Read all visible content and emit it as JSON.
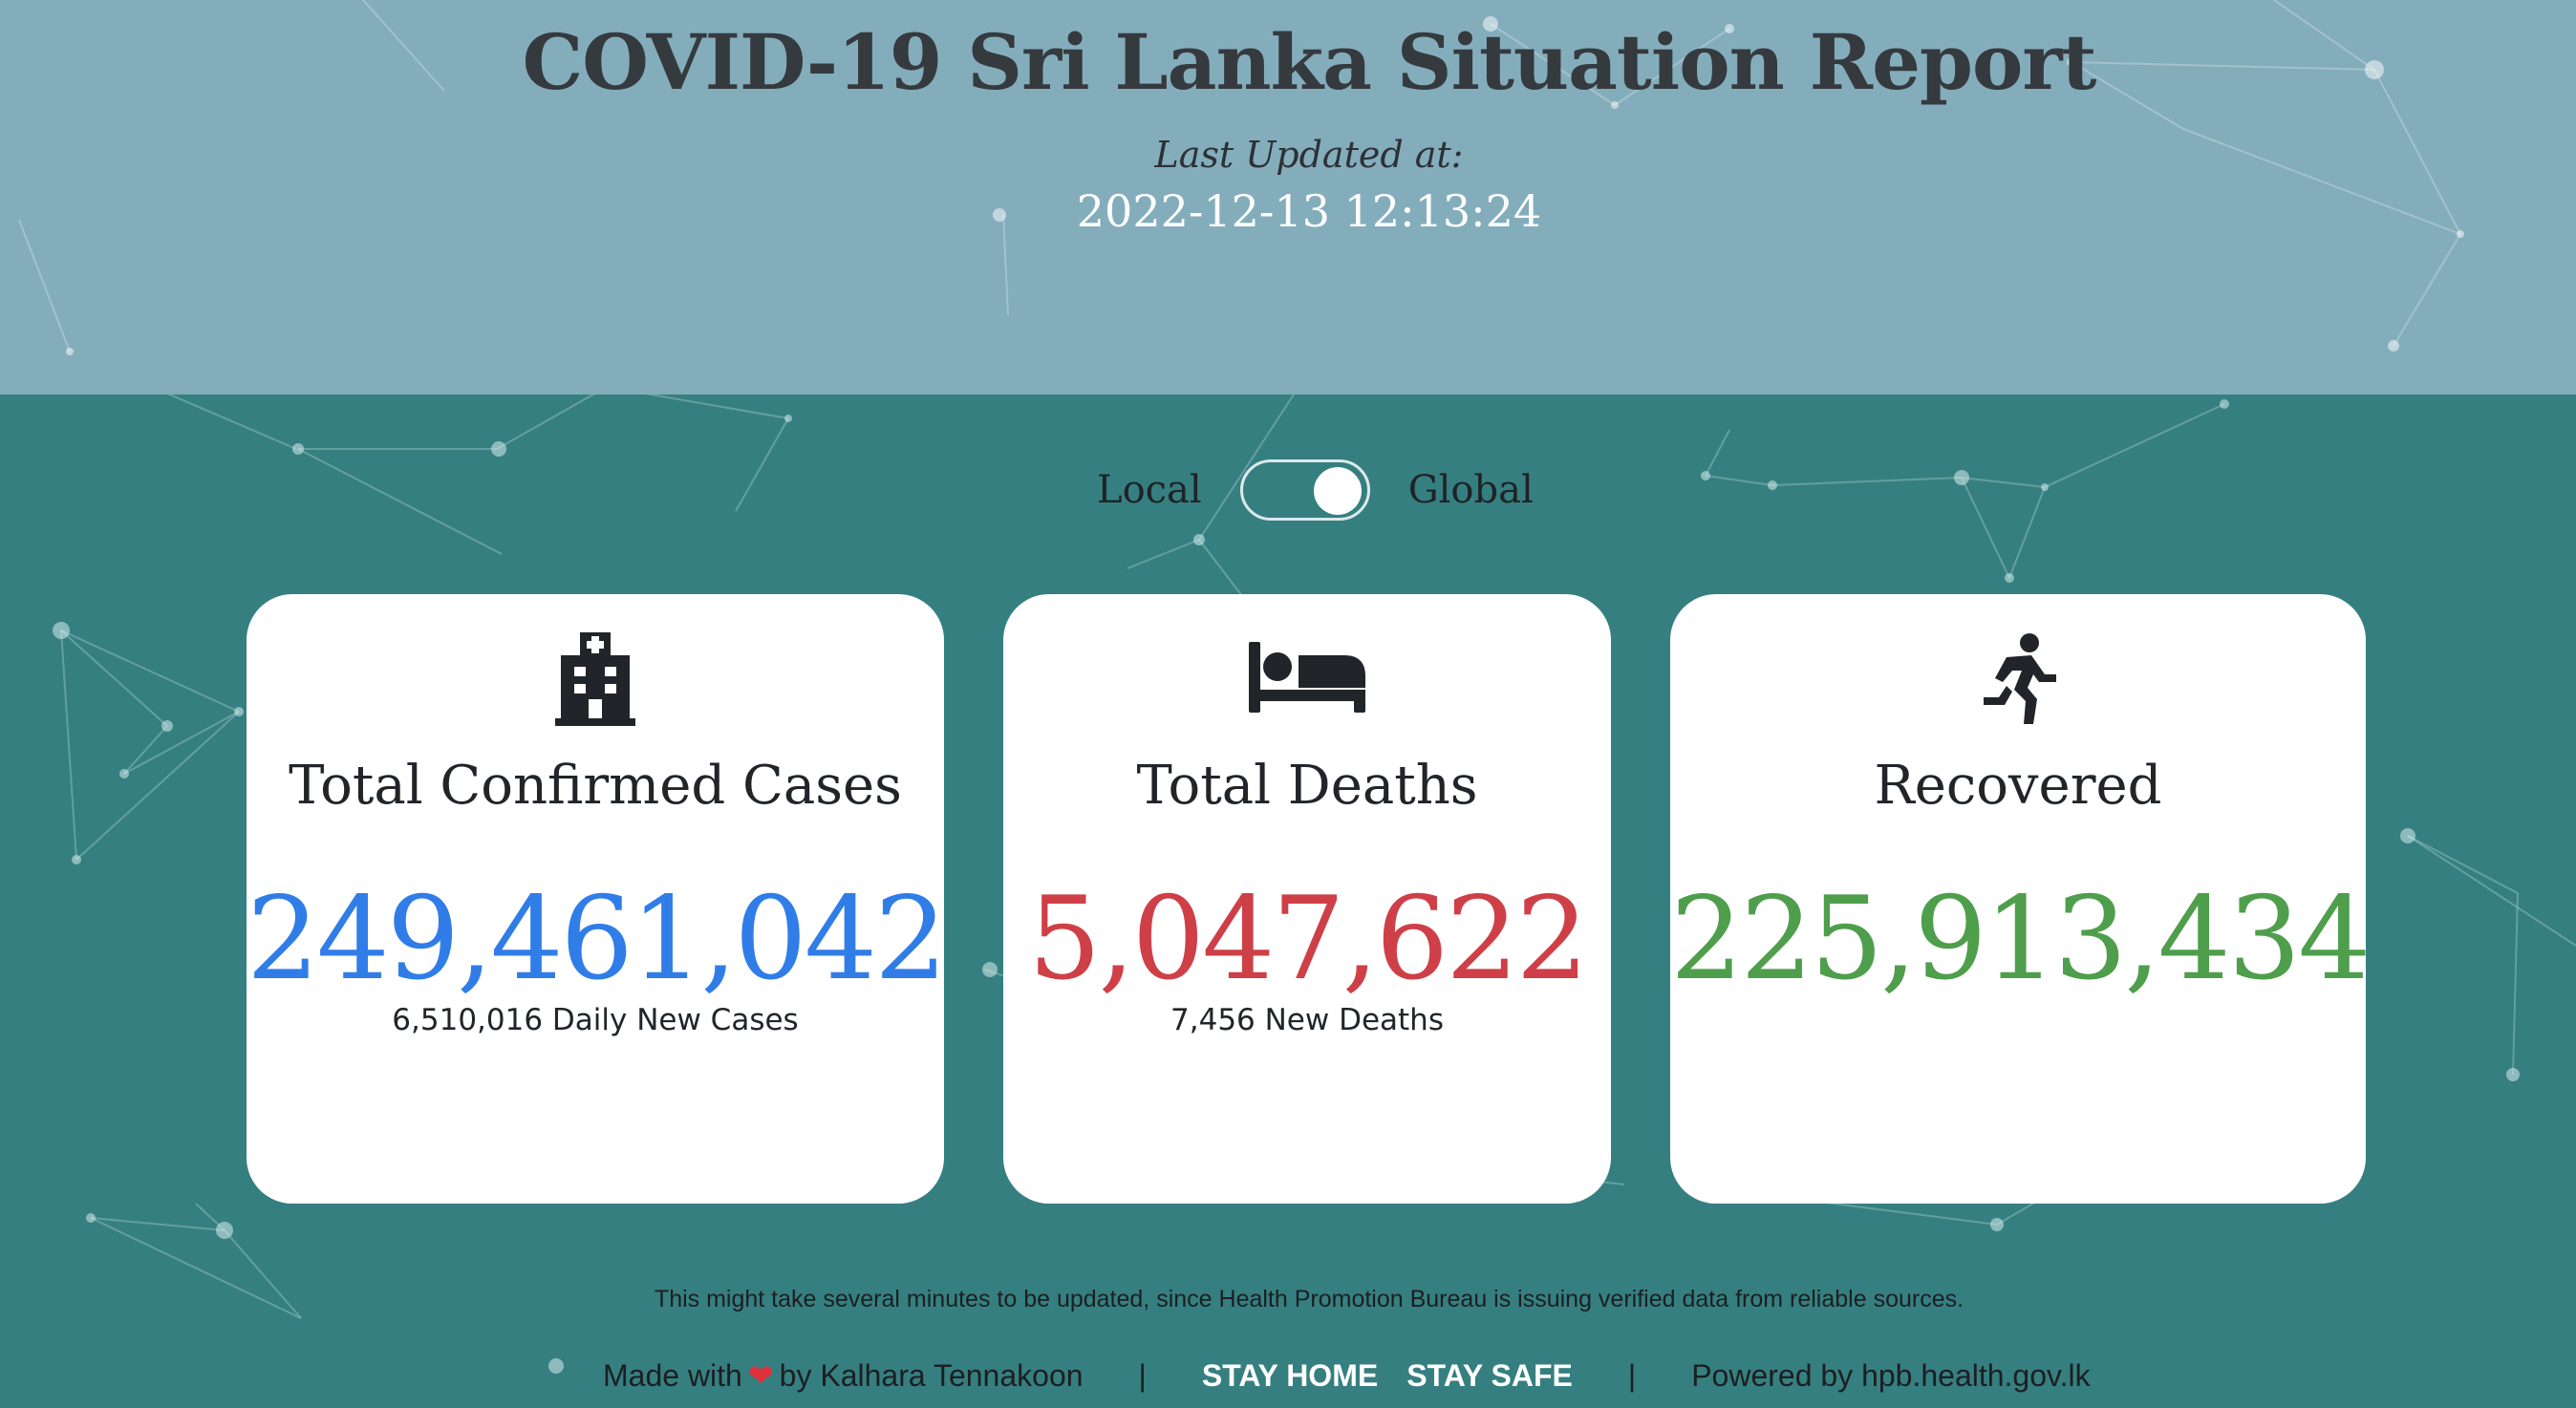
{
  "header": {
    "title": "COVID-19 Sri Lanka Situation Report",
    "last_updated_label": "Last Updated at:",
    "last_updated_value": "2022-12-13 12:13:24"
  },
  "toggle": {
    "left_label": "Local",
    "right_label": "Global",
    "selected": "Global"
  },
  "cards": [
    {
      "icon": "hospital-icon",
      "title": "Total Confirmed Cases",
      "value": "249,461,042",
      "subtext": "6,510,016 Daily New Cases",
      "color": "#307de8"
    },
    {
      "icon": "bed-icon",
      "title": "Total Deaths",
      "value": "5,047,622",
      "subtext": "7,456 New Deaths",
      "color": "#cf3f47"
    },
    {
      "icon": "running-person-icon",
      "title": "Recovered",
      "value": "225,913,434",
      "subtext": "",
      "color": "#4f9e4c"
    }
  ],
  "note": "This might take several minutes to be updated, since Health Promotion Bureau is issuing verified data from reliable sources.",
  "footer": {
    "made_with": "Made with",
    "heart": "❤",
    "by": "by Kalhara Tennakoon",
    "separator": "|",
    "stay_home": "STAY HOME",
    "stay_safe": "STAY SAFE",
    "powered_by": "Powered by hpb.health.gov.lk"
  },
  "colors": {
    "header_bg": "#84adbc",
    "body_bg": "#367f80",
    "card_bg": "#ffffff"
  }
}
